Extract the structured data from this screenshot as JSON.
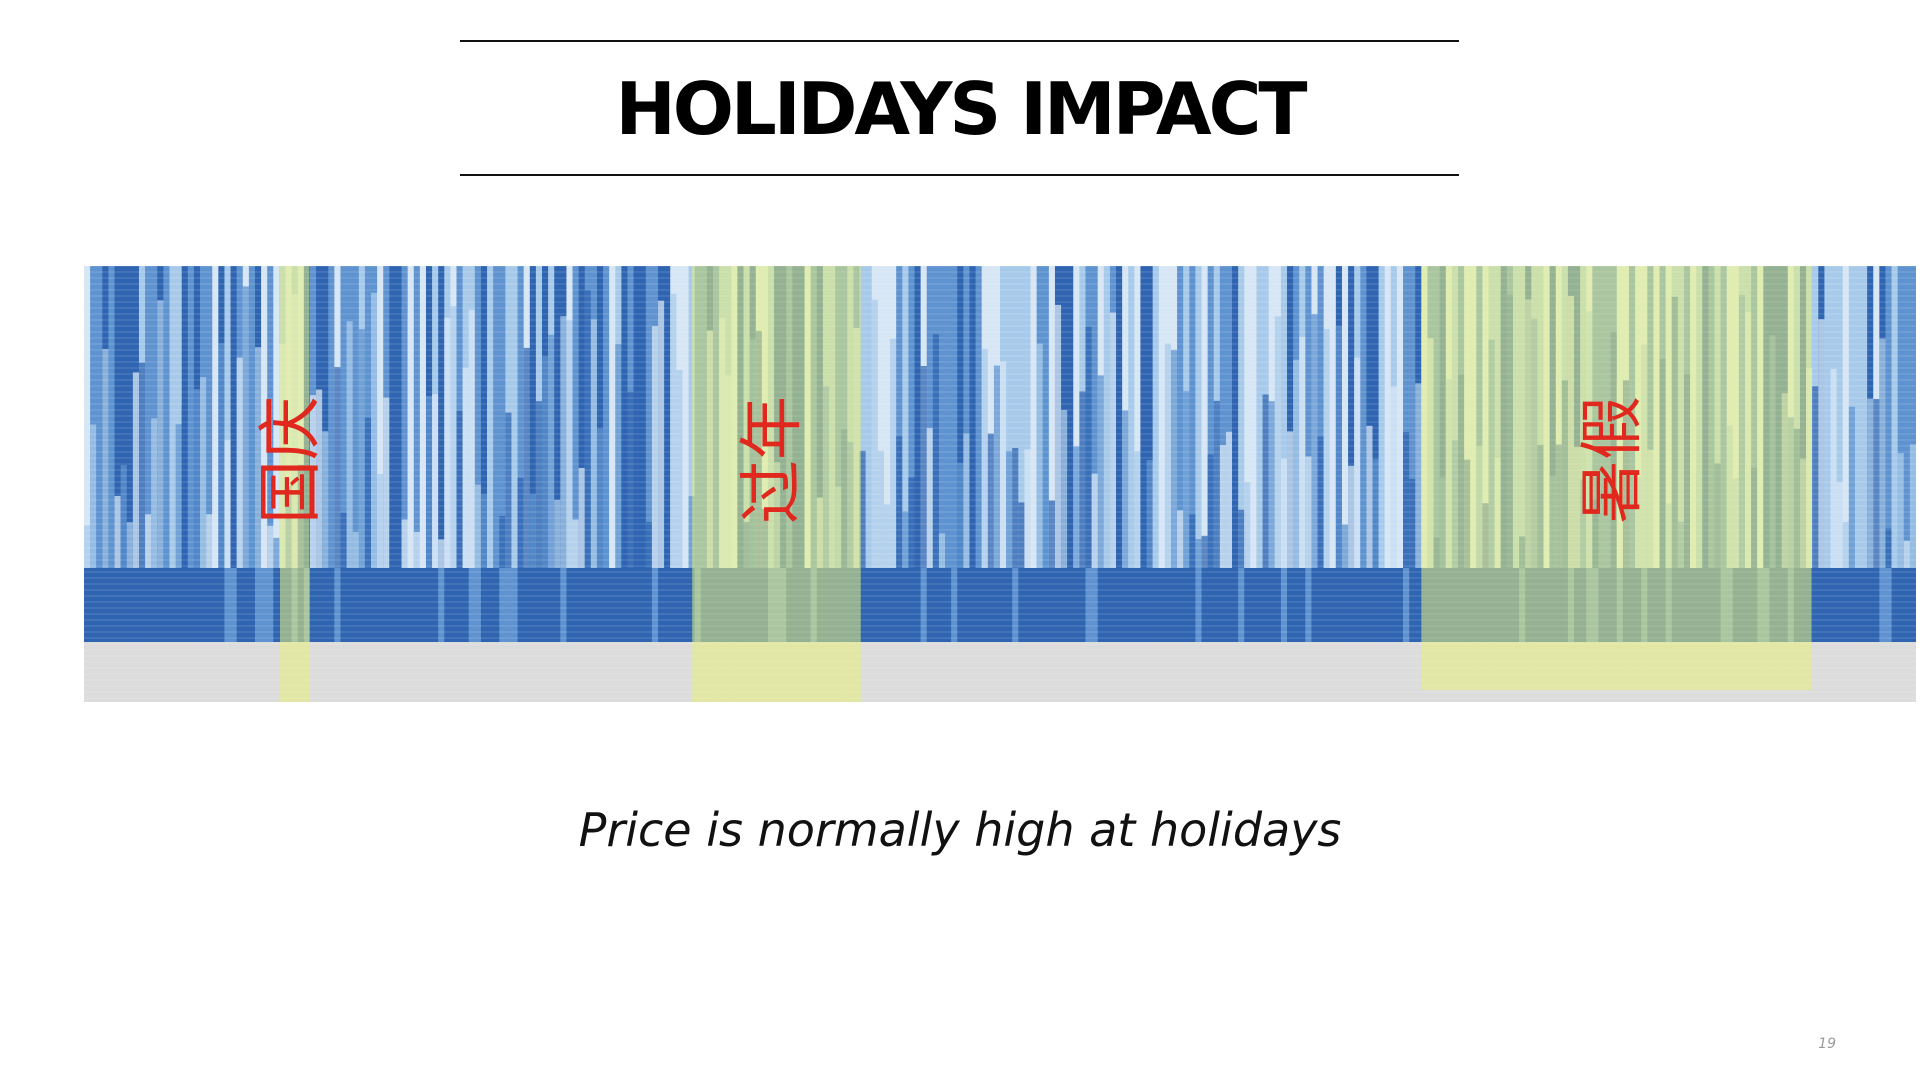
{
  "slide": {
    "title": "HOLIDAYS IMPACT",
    "subtitle": "Price is normally high at holidays",
    "page_number": "19"
  },
  "chart_data": {
    "type": "heatmap",
    "title": "",
    "xlabel": "",
    "ylabel": "",
    "columns": 300,
    "colors": {
      "dark_blue": "#2f64b1",
      "mid_blue": "#5e93d0",
      "light_blue": "#a8caea",
      "pale_blue": "#d6e6f5",
      "empty_gray": "#dcdcdc",
      "highlight": "#e8f07a",
      "label_red": "#e0281e"
    },
    "holidays": [
      {
        "label": "国庆",
        "start_fraction": 0.107,
        "end_fraction": 0.123
      },
      {
        "label": "过年",
        "start_fraction": 0.332,
        "end_fraction": 0.424
      },
      {
        "label": "暑假",
        "start_fraction": 0.73,
        "end_fraction": 0.943
      }
    ]
  }
}
